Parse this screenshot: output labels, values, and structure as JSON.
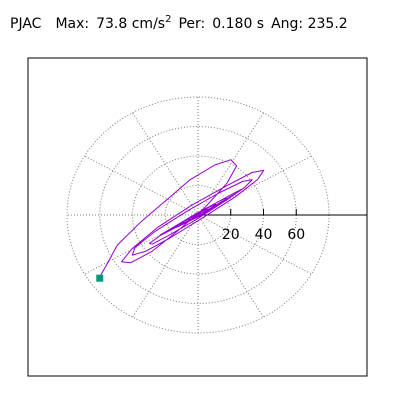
{
  "header": {
    "station": "PJAC",
    "max_label": "Max:",
    "max_value": "73.8",
    "max_unit": "cm/s",
    "max_unit_exp": "2",
    "per_label": "Per:",
    "per_value": "0.180 s",
    "ang_label": "Ang:",
    "ang_value": "235.2"
  },
  "chart_data": {
    "type": "scatter",
    "subtype": "polar particle-motion trace",
    "units": "cm/s2",
    "radial_range": [
      0,
      80
    ],
    "grid_rings": [
      20,
      40,
      60,
      80
    ],
    "grid_spokes_deg": [
      0,
      30,
      60,
      90,
      120,
      150,
      180,
      210,
      240,
      270,
      300,
      330
    ],
    "radial_tick_labels": [
      "20",
      "40",
      "60"
    ],
    "grid": true,
    "grid_style": "dotted",
    "trace_color": "#9400d3",
    "end_marker_color": "#009b7d",
    "peak_point": {
      "x": -60.3,
      "y": -42.5
    },
    "trace": {
      "x": [
        -56.5,
        -49.3,
        -34.8,
        -18.7,
        -5.0,
        10.2,
        20.1,
        23.6,
        17.8,
        4.2,
        -12.8,
        -28.3,
        -41.2,
        -46.7,
        -40.3,
        -24.9,
        -3.1,
        18.6,
        33.0,
        40.2,
        36.4,
        22.9,
        3.0,
        -17.1,
        -32.1,
        -40.1,
        -38.4,
        -25.8,
        -6.7,
        12.7,
        27.2,
        33.1,
        28.4,
        14.7,
        -2.4,
        -18.3,
        -28.0,
        -29.7,
        -21.3,
        -5.7,
        10.9,
        22.8,
        27.0,
        22.4,
        10.6,
        -4.3,
        -16.9,
        -23.4,
        -22.1,
        -13.6,
        -1.6,
        9.8,
        16.4,
        17.7,
        12.3,
        2.9,
        -7.1,
        -13.2,
        -14.1,
        -9.3,
        -1.4,
        6.2,
        10.7,
        11.5,
        7.4,
        0.8,
        -5.6,
        -9.0,
        -8.6,
        -4.3,
        1.8,
        6.3,
        7.7,
        5.4,
        0.8,
        -3.6,
        -5.8,
        -5.1,
        -1.9,
        2.0,
        4.6,
        4.8,
        2.7,
        -0.5
      ],
      "y": [
        -35.2,
        -20.4,
        -4.6,
        10.7,
        23.8,
        33.9,
        37.5,
        33.3,
        21.6,
        5.1,
        -11.2,
        -24.8,
        -32.4,
        -31.7,
        -22.9,
        -8.6,
        7.2,
        20.5,
        28.8,
        30.3,
        24.1,
        12.4,
        -1.8,
        -15.6,
        -24.7,
        -27.2,
        -21.9,
        -10.8,
        2.6,
        14.9,
        22.7,
        24.0,
        18.6,
        8.2,
        -3.9,
        -14.1,
        -19.7,
        -19.2,
        -12.6,
        -2.4,
        8.1,
        15.3,
        17.6,
        14.2,
        6.5,
        -2.8,
        -10.4,
        -14.1,
        -12.9,
        -7.3,
        0.6,
        7.4,
        11.2,
        11.0,
        6.9,
        0.8,
        -5.1,
        -8.4,
        -8.3,
        -4.9,
        0.4,
        5.0,
        7.1,
        6.4,
        3.3,
        -0.9,
        -4.3,
        -5.5,
        -4.2,
        -1.1,
        2.2,
        4.1,
        4.0,
        2.1,
        -0.6,
        -2.7,
        -3.3,
        -2.3,
        -0.3,
        1.5,
        2.2,
        1.6,
        0.4,
        -0.6
      ]
    }
  }
}
